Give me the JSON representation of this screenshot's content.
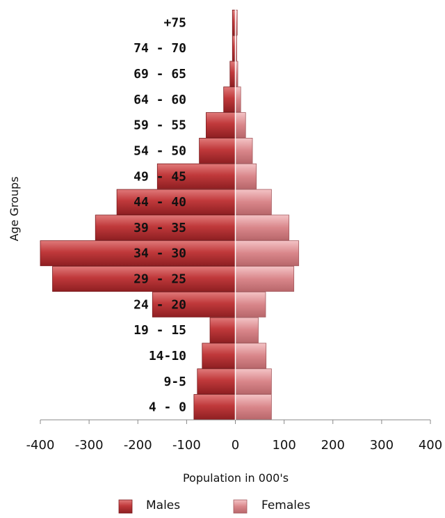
{
  "chart_data": {
    "type": "bar",
    "orientation": "horizontal",
    "subtype": "population-pyramid",
    "categories": [
      "4 - 0",
      "9-5",
      "14-10",
      "19 - 15",
      "24 - 20",
      "29 - 25",
      "34 - 30",
      "39 - 35",
      "44 - 40",
      "49 - 45",
      "54 - 50",
      "59 - 55",
      "64 - 60",
      "69 - 65",
      "74 - 70",
      "+75"
    ],
    "series": [
      {
        "name": "Males",
        "values": [
          -85,
          -78,
          -68,
          -52,
          -170,
          -375,
          -400,
          -287,
          -243,
          -160,
          -74,
          -60,
          -24,
          -11,
          -6,
          -6
        ],
        "color": "#c0393b"
      },
      {
        "name": "Females",
        "values": [
          74,
          74,
          63,
          47,
          62,
          120,
          130,
          110,
          74,
          43,
          35,
          21,
          11,
          5,
          3,
          4
        ],
        "color": "#d9868a"
      }
    ],
    "xlabel": "Population in 000's",
    "ylabel": "Age Groups",
    "xlim": [
      -400,
      400
    ],
    "xticks": [
      "-400",
      "-300",
      "-200",
      "-100",
      "0",
      "100",
      "200",
      "300",
      "400"
    ],
    "grid": false,
    "legend": "bottom"
  }
}
